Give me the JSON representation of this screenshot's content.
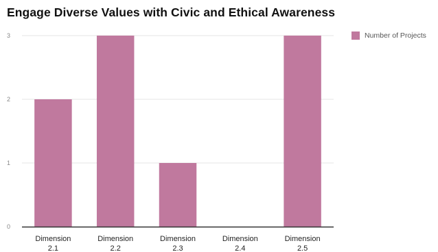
{
  "chart_data": {
    "type": "bar",
    "title": "Engage Diverse Values with Civic and Ethical Awareness",
    "categories": [
      "Dimension 2.1",
      "Dimension 2.2",
      "Dimension 2.3",
      "Dimension 2.4",
      "Dimension 2.5"
    ],
    "category_lines": [
      [
        "Dimension",
        "2.1"
      ],
      [
        "Dimension",
        "2.2"
      ],
      [
        "Dimension",
        "2.3"
      ],
      [
        "Dimension",
        "2.4"
      ],
      [
        "Dimension",
        "2.5"
      ]
    ],
    "series": [
      {
        "name": "Number of Projects",
        "values": [
          2,
          3,
          1,
          0,
          3
        ]
      }
    ],
    "yticks": [
      "0",
      "1",
      "2",
      "3"
    ],
    "ylim": [
      0,
      3
    ],
    "xlabel": "",
    "ylabel": "",
    "grid": true,
    "legend_position": "top-right",
    "colors": {
      "bar": "#c0799e",
      "grid": "#e4e4e4",
      "axis": "#333333"
    }
  }
}
